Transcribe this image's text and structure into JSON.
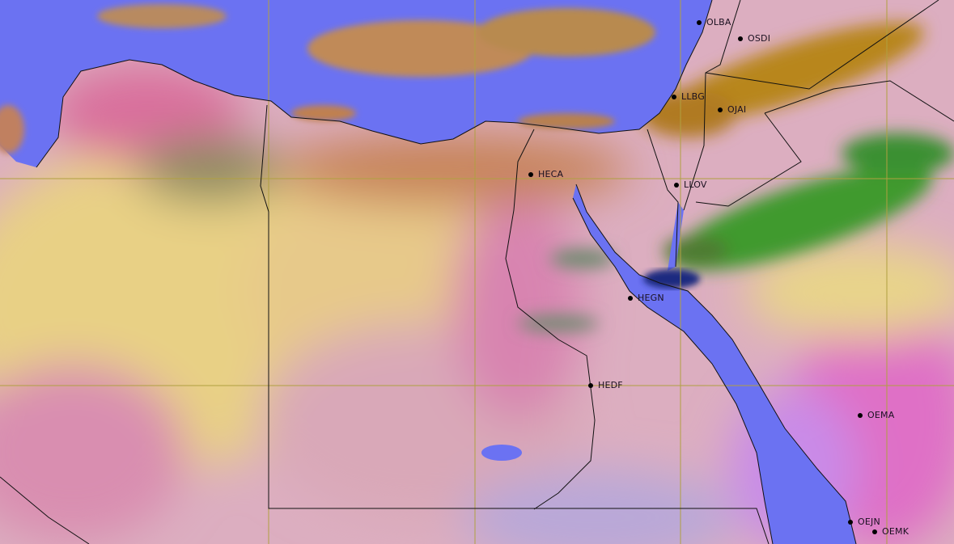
{
  "map": {
    "imagery": "dust-rgb-satellite",
    "colors": {
      "sea": "#6b72f2",
      "desert_yellow": "#e6cf86",
      "pink": "#d98db2",
      "magenta": "#dd6fc4",
      "dust_orange": "#c48a4a",
      "cloud_green": "#3f9a2e",
      "grid": "#b0a040",
      "border": "#111111"
    },
    "stations": [
      {
        "code": "OLBA"
      },
      {
        "code": "OSDI"
      },
      {
        "code": "LLBG"
      },
      {
        "code": "OJAI"
      },
      {
        "code": "HECA"
      },
      {
        "code": "LLOV"
      },
      {
        "code": "HEGN"
      },
      {
        "code": "HEDF"
      },
      {
        "code": "OEMA"
      },
      {
        "code": "OEJN"
      },
      {
        "code": "OEMK"
      }
    ]
  }
}
